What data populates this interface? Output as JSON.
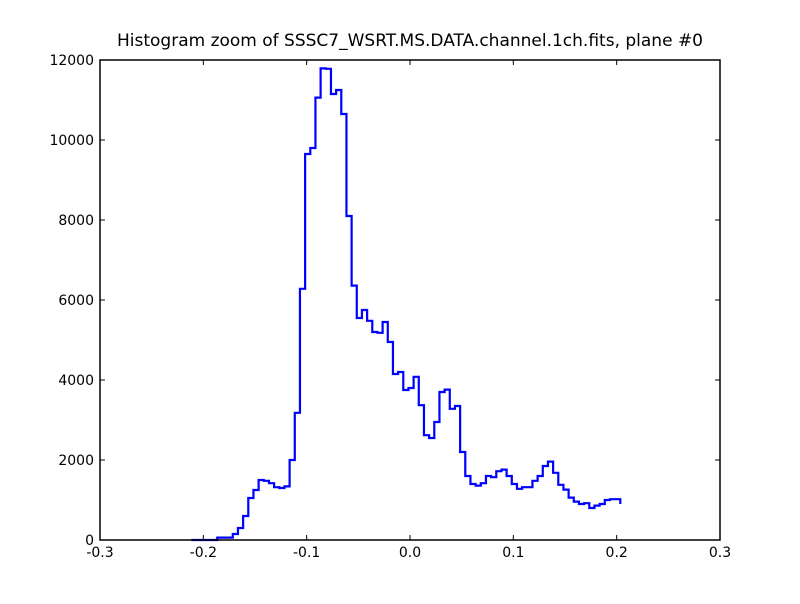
{
  "chart_data": {
    "type": "line",
    "drawstyle": "steps-post",
    "title": "Histogram zoom of SSSC7_WSRT.MS.DATA.channel.1ch.fits, plane #0",
    "xlabel": "",
    "ylabel": "",
    "xlim": [
      -0.3,
      0.3
    ],
    "ylim": [
      0,
      12000
    ],
    "x_ticks": [
      -0.3,
      -0.2,
      -0.1,
      0.0,
      0.1,
      0.2,
      0.3
    ],
    "x_tick_labels": [
      "-0.3",
      "-0.2",
      "-0.1",
      "0.0",
      "0.1",
      "0.2",
      "0.3"
    ],
    "y_ticks": [
      0,
      2000,
      4000,
      6000,
      8000,
      10000,
      12000
    ],
    "y_tick_labels": [
      "0",
      "2000",
      "4000",
      "6000",
      "8000",
      "10000",
      "12000"
    ],
    "grid": false,
    "series": [
      {
        "color": "#0000ff",
        "x": [
          -0.2115,
          -0.2065,
          -0.2015,
          -0.1965,
          -0.1915,
          -0.1865,
          -0.1815,
          -0.1765,
          -0.1715,
          -0.1665,
          -0.1615,
          -0.1565,
          -0.1515,
          -0.1465,
          -0.1415,
          -0.1365,
          -0.1315,
          -0.1265,
          -0.1215,
          -0.1165,
          -0.1115,
          -0.1065,
          -0.1015,
          -0.0965,
          -0.0915,
          -0.0865,
          -0.0815,
          -0.0765,
          -0.0715,
          -0.0665,
          -0.0615,
          -0.0565,
          -0.0515,
          -0.0465,
          -0.0415,
          -0.0365,
          -0.0315,
          -0.0265,
          -0.0215,
          -0.0165,
          -0.0115,
          -0.0065,
          -0.0015,
          0.0035,
          0.0085,
          0.0135,
          0.0185,
          0.0235,
          0.0285,
          0.0335,
          0.0385,
          0.0435,
          0.0485,
          0.0535,
          0.0585,
          0.0635,
          0.0685,
          0.0735,
          0.0785,
          0.0835,
          0.0885,
          0.0935,
          0.0985,
          0.1035,
          0.1085,
          0.1135,
          0.1185,
          0.1235,
          0.1285,
          0.1335,
          0.1385,
          0.1435,
          0.1485,
          0.1535,
          0.1585,
          0.1635,
          0.1685,
          0.1735,
          0.1785,
          0.1835,
          0.1885,
          0.1935,
          0.1985,
          0.2035
        ],
        "values": [
          0,
          0,
          0,
          0,
          0,
          60,
          60,
          60,
          150,
          300,
          600,
          1050,
          1250,
          1500,
          1480,
          1420,
          1320,
          1300,
          1340,
          2000,
          3180,
          6280,
          9650,
          9800,
          11060,
          11790,
          11780,
          11150,
          11250,
          10650,
          8100,
          6360,
          5550,
          5750,
          5480,
          5200,
          5180,
          5450,
          4950,
          4150,
          4200,
          3750,
          3800,
          4080,
          3370,
          2620,
          2550,
          2950,
          3700,
          3760,
          3280,
          3350,
          2200,
          1600,
          1400,
          1360,
          1420,
          1600,
          1570,
          1720,
          1760,
          1600,
          1400,
          1280,
          1320,
          1320,
          1480,
          1600,
          1850,
          1960,
          1680,
          1380,
          1260,
          1060,
          960,
          900,
          920,
          800,
          860,
          900,
          1000,
          1020,
          1020,
          900
        ]
      }
    ]
  }
}
